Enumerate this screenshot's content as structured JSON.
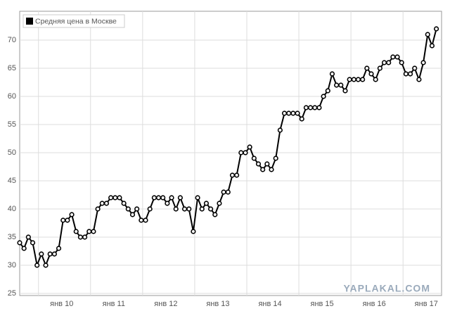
{
  "chart_data": {
    "type": "line",
    "categories": [
      null,
      null,
      null,
      null,
      null,
      null,
      null,
      null,
      null,
      null,
      "янв 10",
      null,
      null,
      null,
      null,
      null,
      null,
      null,
      null,
      null,
      null,
      null,
      "янв 11",
      null,
      null,
      null,
      null,
      null,
      null,
      null,
      null,
      null,
      null,
      null,
      "янв 12",
      null,
      null,
      null,
      null,
      null,
      null,
      null,
      null,
      null,
      null,
      null,
      "янв 13",
      null,
      null,
      null,
      null,
      null,
      null,
      null,
      null,
      null,
      null,
      null,
      "янв 14",
      null,
      null,
      null,
      null,
      null,
      null,
      null,
      null,
      null,
      null,
      null,
      "янв 15",
      null,
      null,
      null,
      null,
      null,
      null,
      null,
      null,
      null,
      null,
      null,
      "янв 16",
      null,
      null,
      null,
      null,
      null,
      null,
      null,
      null,
      null,
      null,
      null,
      "янв 17",
      null,
      null
    ],
    "series": [
      {
        "name": "Средняя цена в Москве",
        "color": "#000000",
        "values": [
          34,
          33,
          35,
          34,
          30,
          32,
          30,
          32,
          32,
          33,
          38,
          38,
          39,
          36,
          35,
          35,
          36,
          36,
          40,
          41,
          41,
          42,
          42,
          42,
          41,
          40,
          39,
          40,
          38,
          38,
          40,
          42,
          42,
          42,
          41,
          42,
          40,
          42,
          40,
          40,
          36,
          42,
          40,
          41,
          40,
          39,
          41,
          43,
          43,
          46,
          46,
          50,
          50,
          51,
          49,
          48,
          47,
          48,
          47,
          49,
          54,
          57,
          57,
          57,
          57,
          56,
          58,
          58,
          58,
          58,
          60,
          61,
          64,
          62,
          62,
          61,
          63,
          63,
          63,
          63,
          65,
          64,
          63,
          65,
          66,
          66,
          67,
          67,
          66,
          64,
          64,
          65,
          63,
          66,
          71,
          69,
          72
        ]
      }
    ],
    "ylim": [
      25,
      75
    ],
    "yticks": [
      25,
      30,
      35,
      40,
      45,
      50,
      55,
      60,
      65,
      70
    ],
    "grid": true,
    "legend": "top-left",
    "watermark": "YAPLAKAL.COM"
  }
}
